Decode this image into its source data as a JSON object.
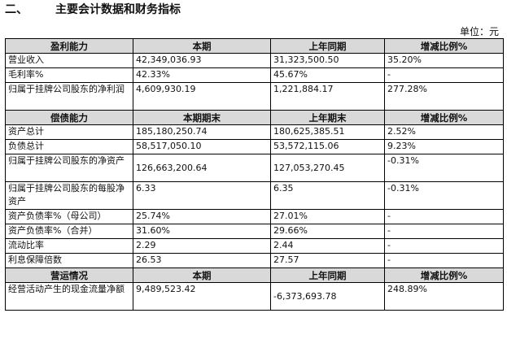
{
  "section": {
    "number": "二、",
    "title": "主要会计数据和财务指标"
  },
  "unit_label": "单位：元",
  "profitability": {
    "headers": [
      "盈利能力",
      "本期",
      "上年同期",
      "增减比例%"
    ],
    "rows": [
      {
        "label": "营业收入",
        "cur": "42,349,036.93",
        "prev": "31,323,500.50",
        "change": "35.20%"
      },
      {
        "label": "毛利率%",
        "cur": "42.33%",
        "prev": "45.67%",
        "change": "-"
      },
      {
        "label": "归属于挂牌公司股东的净利润",
        "cur": "4,609,930.19",
        "prev": "1,221,884.17",
        "change": "277.28%"
      }
    ]
  },
  "solvency": {
    "headers": [
      "偿债能力",
      "本期期末",
      "上年期末",
      "增减比例%"
    ],
    "rows": [
      {
        "label": "资产总计",
        "cur": "185,180,250.74",
        "prev": "180,625,385.51",
        "change": "2.52%"
      },
      {
        "label": "负债总计",
        "cur": "58,517,050.10",
        "prev": "53,572,115.06",
        "change": "9.23%"
      },
      {
        "label": "归属于挂牌公司股东的净资产",
        "cur": "126,663,200.64",
        "prev": "127,053,270.45",
        "change": "-0.31%"
      },
      {
        "label": "归属于挂牌公司股东的每股净资产",
        "cur": "6.33",
        "prev": "6.35",
        "change": "-0.31%"
      },
      {
        "label": "资产负债率%（母公司）",
        "cur": "25.74%",
        "prev": "27.01%",
        "change": "-"
      },
      {
        "label": "资产负债率%（合并）",
        "cur": "31.60%",
        "prev": "29.66%",
        "change": "-"
      },
      {
        "label": "流动比率",
        "cur": "2.29",
        "prev": "2.44",
        "change": "-"
      },
      {
        "label": "利息保障倍数",
        "cur": "26.53",
        "prev": "27.57",
        "change": "-"
      }
    ]
  },
  "operations": {
    "headers": [
      "营运情况",
      "本期",
      "上年同期",
      "增减比例%"
    ],
    "rows": [
      {
        "label": "经营活动产生的现金流量净额",
        "cur": "9,489,523.42",
        "prev": "-6,373,693.78",
        "change": "248.89%"
      }
    ]
  }
}
